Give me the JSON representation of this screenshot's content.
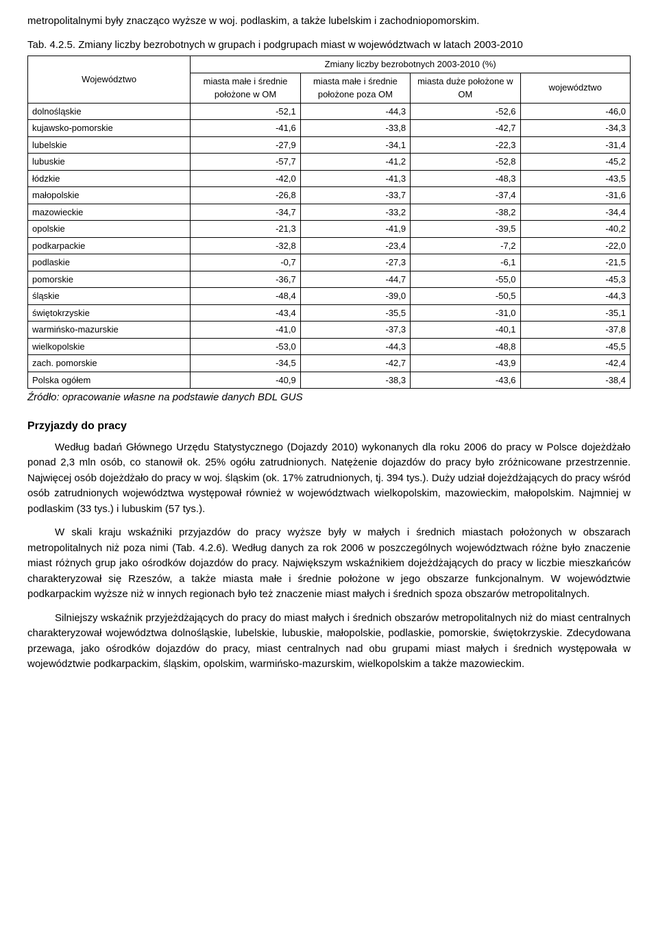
{
  "intro_paragraph": "metropolitalnymi były znacząco wyższe w woj. podlaskim, a także lubelskim i zachodniopomorskim.",
  "table_caption": "Tab. 4.2.5. Zmiany liczby bezrobotnych w grupach i podgrupach miast w województwach w latach 2003-2010",
  "table": {
    "super_header": "Zmiany liczby bezrobotnych 2003-2010 (%)",
    "col0": "Województwo",
    "cols": [
      "miasta małe i średnie położone w OM",
      "miasta małe i średnie położone poza OM",
      "miasta duże położone w OM",
      "województwo"
    ],
    "rows": [
      {
        "label": "dolnośląskie",
        "v": [
          "-52,1",
          "-44,3",
          "-52,6",
          "-46,0"
        ]
      },
      {
        "label": "kujawsko-pomorskie",
        "v": [
          "-41,6",
          "-33,8",
          "-42,7",
          "-34,3"
        ]
      },
      {
        "label": "lubelskie",
        "v": [
          "-27,9",
          "-34,1",
          "-22,3",
          "-31,4"
        ]
      },
      {
        "label": "lubuskie",
        "v": [
          "-57,7",
          "-41,2",
          "-52,8",
          "-45,2"
        ]
      },
      {
        "label": "łódzkie",
        "v": [
          "-42,0",
          "-41,3",
          "-48,3",
          "-43,5"
        ]
      },
      {
        "label": "małopolskie",
        "v": [
          "-26,8",
          "-33,7",
          "-37,4",
          "-31,6"
        ]
      },
      {
        "label": "mazowieckie",
        "v": [
          "-34,7",
          "-33,2",
          "-38,2",
          "-34,4"
        ]
      },
      {
        "label": "opolskie",
        "v": [
          "-21,3",
          "-41,9",
          "-39,5",
          "-40,2"
        ]
      },
      {
        "label": "podkarpackie",
        "v": [
          "-32,8",
          "-23,4",
          "-7,2",
          "-22,0"
        ]
      },
      {
        "label": "podlaskie",
        "v": [
          "-0,7",
          "-27,3",
          "-6,1",
          "-21,5"
        ]
      },
      {
        "label": "pomorskie",
        "v": [
          "-36,7",
          "-44,7",
          "-55,0",
          "-45,3"
        ]
      },
      {
        "label": "śląskie",
        "v": [
          "-48,4",
          "-39,0",
          "-50,5",
          "-44,3"
        ]
      },
      {
        "label": "świętokrzyskie",
        "v": [
          "-43,4",
          "-35,5",
          "-31,0",
          "-35,1"
        ]
      },
      {
        "label": "warmińsko-mazurskie",
        "v": [
          "-41,0",
          "-37,3",
          "-40,1",
          "-37,8"
        ]
      },
      {
        "label": "wielkopolskie",
        "v": [
          "-53,0",
          "-44,3",
          "-48,8",
          "-45,5"
        ]
      },
      {
        "label": "zach. pomorskie",
        "v": [
          "-34,5",
          "-42,7",
          "-43,9",
          "-42,4"
        ]
      },
      {
        "label": "Polska ogółem",
        "v": [
          "-40,9",
          "-38,3",
          "-43,6",
          "-38,4"
        ]
      }
    ]
  },
  "source": "Źródło: opracowanie własne na podstawie danych BDL GUS",
  "section_heading": "Przyjazdy do pracy",
  "paragraphs": [
    "Według badań Głównego Urzędu Statystycznego (Dojazdy 2010) wykonanych dla roku 2006 do pracy w Polsce dojeżdżało ponad 2,3 mln osób, co stanowił ok. 25% ogółu zatrudnionych. Natężenie dojazdów do pracy było zróżnicowane przestrzennie. Najwięcej osób dojeżdżało do pracy w woj. śląskim (ok. 17% zatrudnionych, tj. 394 tys.). Duży udział dojeżdżających do pracy wśród osób zatrudnionych województwa występował również w województwach wielkopolskim, mazowieckim, małopolskim. Najmniej w podlaskim (33 tys.) i lubuskim (57 tys.).",
    "W skali kraju wskaźniki przyjazdów do pracy wyższe były w małych i średnich miastach położonych w obszarach metropolitalnych niż poza nimi (Tab. 4.2.6). Według danych za rok 2006 w poszczególnych województwach różne było znaczenie miast różnych grup jako ośrodków dojazdów do pracy. Największym wskaźnikiem dojeżdżających do pracy w liczbie mieszkańców charakteryzował się Rzeszów, a także miasta małe i średnie położone w jego obszarze funkcjonalnym. W województwie podkarpackim wyższe niż w innych regionach było też znaczenie miast małych i średnich spoza obszarów metropolitalnych.",
    "Silniejszy wskaźnik przyjeżdżających do pracy do miast małych i średnich obszarów metropolitalnych niż do miast centralnych charakteryzował województwa dolnośląskie, lubelskie, lubuskie, małopolskie, podlaskie, pomorskie, świętokrzyskie. Zdecydowana przewaga, jako ośrodków dojazdów do pracy, miast centralnych nad obu grupami miast małych i średnich występowała w województwie podkarpackim, śląskim, opolskim, warmińsko-mazurskim, wielkopolskim a także mazowieckim."
  ]
}
